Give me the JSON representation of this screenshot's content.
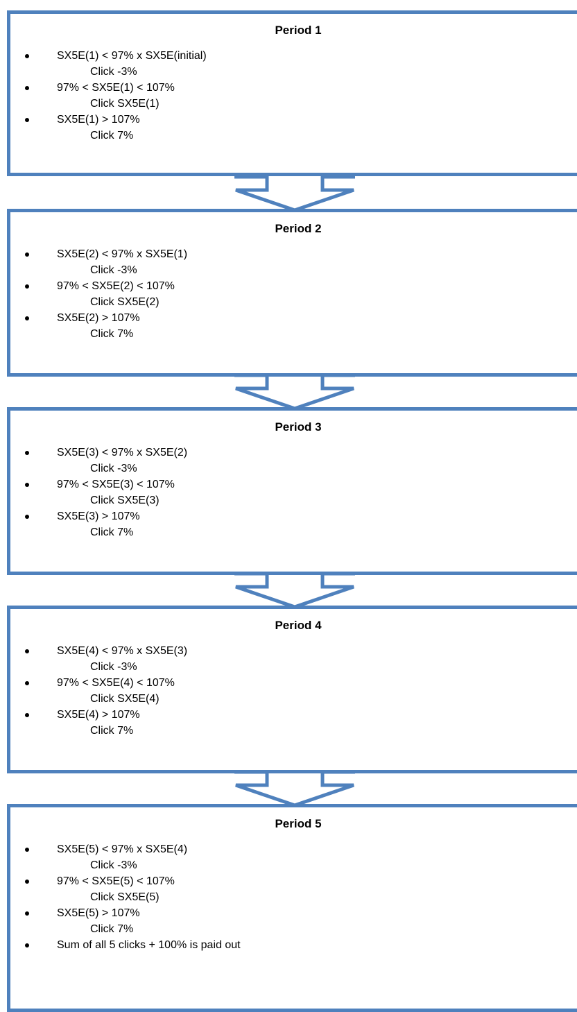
{
  "accent_color": "#4f81bd",
  "periods": [
    {
      "title": "Period 1",
      "rules": [
        {
          "condition": "SX5E(1) < 97% x SX5E(initial)",
          "result": "Click -3%"
        },
        {
          "condition": "97% < SX5E(1) < 107%",
          "result": "Click SX5E(1)"
        },
        {
          "condition": "SX5E(1) > 107%",
          "result": "Click 7%"
        }
      ]
    },
    {
      "title": "Period 2",
      "rules": [
        {
          "condition": "SX5E(2) < 97% x SX5E(1)",
          "result": "Click -3%"
        },
        {
          "condition": "97% < SX5E(2) < 107%",
          "result": "Click SX5E(2)"
        },
        {
          "condition": "SX5E(2) > 107%",
          "result": "Click 7%"
        }
      ]
    },
    {
      "title": "Period 3",
      "rules": [
        {
          "condition": "SX5E(3) < 97% x SX5E(2)",
          "result": "Click -3%"
        },
        {
          "condition": "97% < SX5E(3) < 107%",
          "result": "Click SX5E(3)"
        },
        {
          "condition": "SX5E(3) > 107%",
          "result": "Click 7%"
        }
      ]
    },
    {
      "title": "Period 4",
      "rules": [
        {
          "condition": "SX5E(4) < 97% x SX5E(3)",
          "result": "Click -3%"
        },
        {
          "condition": "97% < SX5E(4) < 107%",
          "result": "Click SX5E(4)"
        },
        {
          "condition": "SX5E(4) > 107%",
          "result": "Click 7%"
        }
      ]
    },
    {
      "title": "Period 5",
      "rules": [
        {
          "condition": "SX5E(5) < 97% x SX5E(4)",
          "result": "Click -3%"
        },
        {
          "condition": "97% < SX5E(5) < 107%",
          "result": "Click SX5E(5)"
        },
        {
          "condition": "SX5E(5) > 107%",
          "result": "Click 7%"
        }
      ],
      "final_note": "Sum of all 5 clicks + 100% is paid out"
    }
  ]
}
